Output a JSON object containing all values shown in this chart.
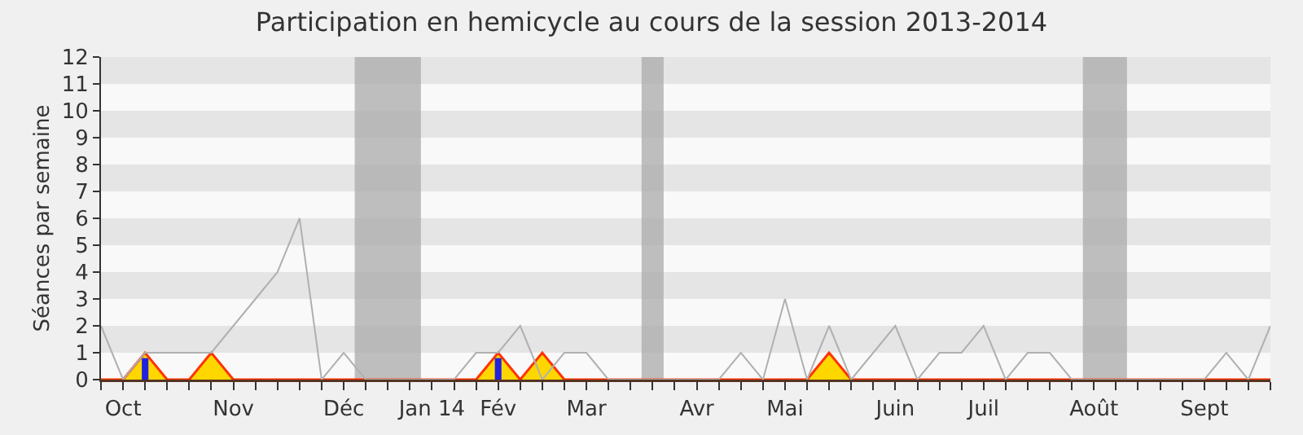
{
  "chart_data": {
    "type": "line",
    "title": "Participation en hemicycle au cours de la session 2013-2014",
    "ylabel": "Séances par semaine",
    "categories": [
      null,
      "Oct",
      null,
      null,
      null,
      null,
      "Nov",
      null,
      null,
      null,
      null,
      "Déc",
      null,
      null,
      null,
      "Jan 14",
      null,
      null,
      "Fév",
      null,
      null,
      null,
      "Mar",
      null,
      null,
      null,
      null,
      "Avr",
      null,
      null,
      null,
      "Mai",
      null,
      null,
      null,
      null,
      "Juin",
      null,
      null,
      null,
      "Juil",
      null,
      null,
      null,
      null,
      "Août",
      null,
      null,
      null,
      null,
      "Sept",
      null,
      null,
      null
    ],
    "series": [
      {
        "color": "#b0b0b0",
        "values": [
          2,
          0,
          1,
          1,
          1,
          1,
          2,
          3,
          4,
          6,
          0,
          1,
          0,
          0,
          0,
          0,
          0,
          1,
          1,
          2,
          0,
          1,
          1,
          0,
          0,
          0,
          0,
          0,
          0,
          1,
          0,
          3,
          0,
          2,
          0,
          1,
          2,
          0,
          1,
          1,
          2,
          0,
          1,
          1,
          0,
          0,
          0,
          0,
          0,
          0,
          0,
          1,
          0,
          2
        ]
      },
      {
        "type": "area",
        "color": "#ffd700",
        "values": [
          0,
          0,
          1,
          0,
          0,
          1,
          0,
          0,
          0,
          0,
          0,
          0,
          0,
          0,
          0,
          0,
          0,
          0,
          1,
          0,
          1,
          0,
          0,
          0,
          0,
          0,
          0,
          0,
          0,
          0,
          0,
          0,
          0,
          1,
          0,
          0,
          0,
          0,
          0,
          0,
          0,
          0,
          0,
          0,
          0,
          0,
          0,
          0,
          0,
          0,
          0,
          0,
          0,
          0
        ]
      },
      {
        "type": "bar",
        "color": "#2222dd",
        "values": [
          0,
          0,
          0.8,
          0,
          0,
          0,
          0,
          0,
          0,
          0,
          0,
          0,
          0,
          0,
          0,
          0,
          0,
          0,
          0.8,
          0,
          0,
          0,
          0,
          0,
          0,
          0,
          0,
          0,
          0,
          0,
          0,
          0,
          0,
          0,
          0,
          0,
          0,
          0,
          0,
          0,
          0,
          0,
          0,
          0,
          0,
          0,
          0,
          0,
          0,
          0,
          0,
          0,
          0,
          0
        ]
      }
    ],
    "ylim": [
      0,
      12
    ],
    "yticks": [
      0,
      1,
      2,
      3,
      4,
      5,
      6,
      7,
      8,
      9,
      10,
      11,
      12
    ],
    "marker": "none"
  }
}
